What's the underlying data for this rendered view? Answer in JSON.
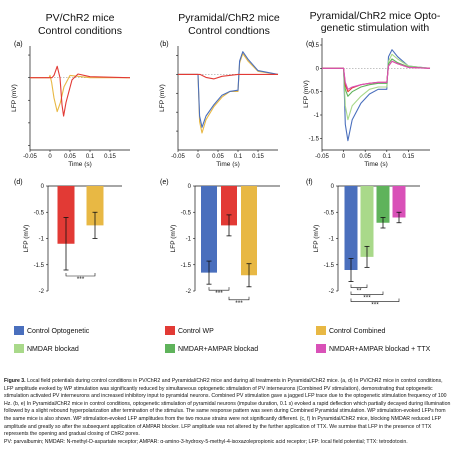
{
  "panel_titles": [
    [
      "PV/ChR2 mice",
      "Control conditions"
    ],
    [
      "Pyramidal/ChR2 mice",
      "Control condtions"
    ],
    [
      "Pyramidal/ChR2 mice Opto-",
      "genetic stimulation with"
    ]
  ],
  "colors": {
    "control_optogenetic": "#4a6fbd",
    "control_wp": "#e23a35",
    "control_combined": "#e8b844",
    "nmdar_blockad": "#a9d98a",
    "nmdar_ampar_blockad": "#5fb35b",
    "nmdar_ampar_ttx": "#d951b8"
  },
  "legend": [
    {
      "label": "Control Optogenetic",
      "color": "#4a6fbd"
    },
    {
      "label": "Control WP",
      "color": "#e23a35"
    },
    {
      "label": "Control Combined",
      "color": "#e8b844"
    },
    {
      "label": "NMDAR blockad",
      "color": "#a9d98a"
    },
    {
      "label": "NMDAR+AMPAR blockad",
      "color": "#5fb35b"
    },
    {
      "label": "NMDAR+AMPAR blockad + TTX",
      "color": "#d951b8"
    }
  ],
  "chart_data": [
    {
      "panel": "(a)",
      "type": "line",
      "xlabel": "Time (s)",
      "ylabel": "LFP (mV)",
      "xlim": [
        -0.05,
        0.2
      ],
      "ylim": [
        -1.6,
        0.7
      ],
      "xticks": [
        "-0.05",
        "0",
        "0.05",
        "0.1",
        "0.15"
      ],
      "series": [
        {
          "color": "#e8b844",
          "x": [
            -0.05,
            -0.002,
            0.0,
            0.004,
            0.01,
            0.018,
            0.026,
            0.035,
            0.05,
            0.07,
            0.1,
            0.2
          ],
          "y": [
            0,
            0,
            0.05,
            -0.1,
            -0.45,
            -0.75,
            -0.55,
            -0.2,
            0.05,
            0.03,
            0.0,
            0.0
          ]
        },
        {
          "color": "#e23a35",
          "x": [
            -0.05,
            0.005,
            0.01,
            0.018,
            0.025,
            0.03,
            0.034,
            0.04,
            0.055,
            0.07,
            0.1,
            0.2
          ],
          "y": [
            0,
            0,
            0.05,
            0.25,
            0.0,
            -0.6,
            -0.85,
            -0.55,
            -0.05,
            0.08,
            0.02,
            0.0
          ]
        }
      ]
    },
    {
      "panel": "(b)",
      "type": "line",
      "xlabel": "Time (s)",
      "ylabel": "LFP (mV)",
      "xlim": [
        -0.05,
        0.2
      ],
      "ylim": [
        -2.0,
        0.75
      ],
      "xticks": [
        "-0.05",
        "0",
        "0.05",
        "0.1",
        "0.15"
      ],
      "series": [
        {
          "color": "#e8b844",
          "x": [
            -0.05,
            0.0,
            0.004,
            0.01,
            0.02,
            0.04,
            0.06,
            0.08,
            0.1,
            0.104,
            0.112,
            0.125,
            0.15,
            0.2
          ],
          "y": [
            0,
            0,
            -1.25,
            -1.55,
            -1.2,
            -0.85,
            -0.6,
            -0.45,
            -0.45,
            0.3,
            0.55,
            0.35,
            0.08,
            0.0
          ]
        },
        {
          "color": "#4a6fbd",
          "x": [
            -0.05,
            0.0,
            0.004,
            0.01,
            0.02,
            0.04,
            0.06,
            0.08,
            0.1,
            0.104,
            0.112,
            0.125,
            0.15,
            0.2
          ],
          "y": [
            0,
            0,
            -1.1,
            -1.4,
            -1.1,
            -0.8,
            -0.55,
            -0.45,
            -0.42,
            0.35,
            0.6,
            0.4,
            0.1,
            0.0
          ]
        },
        {
          "color": "#e23a35",
          "x": [
            -0.05,
            0.005,
            0.02,
            0.04,
            0.06,
            0.1,
            0.2
          ],
          "y": [
            0,
            0,
            -0.08,
            -0.12,
            -0.05,
            0.0,
            0.0
          ]
        }
      ]
    },
    {
      "panel": "(c)",
      "type": "line",
      "xlabel": "Time (s)",
      "ylabel": "LFP (mV)",
      "xlim": [
        -0.05,
        0.2
      ],
      "ylim": [
        -1.75,
        0.65
      ],
      "xticks": [
        "-0.05",
        "0",
        "0.05",
        "0.1",
        "0.15"
      ],
      "yticks": [
        "0.5",
        "0",
        "-0.5",
        "-1",
        "-1.5"
      ],
      "series": [
        {
          "color": "#4a6fbd",
          "x": [
            -0.05,
            0.0,
            0.004,
            0.01,
            0.02,
            0.04,
            0.06,
            0.08,
            0.1,
            0.104,
            0.112,
            0.125,
            0.15,
            0.2
          ],
          "y": [
            0,
            0,
            -1.2,
            -1.55,
            -1.1,
            -0.75,
            -0.55,
            -0.45,
            -0.45,
            0.25,
            0.4,
            0.25,
            0.05,
            0.0
          ]
        },
        {
          "color": "#a9d98a",
          "x": [
            -0.05,
            0.0,
            0.004,
            0.01,
            0.02,
            0.04,
            0.06,
            0.08,
            0.1,
            0.104,
            0.112,
            0.125,
            0.15,
            0.2
          ],
          "y": [
            0,
            0,
            -0.8,
            -1.1,
            -0.8,
            -0.6,
            -0.45,
            -0.4,
            -0.4,
            0.15,
            0.3,
            0.2,
            0.05,
            0.0
          ]
        },
        {
          "color": "#5fb35b",
          "x": [
            -0.05,
            0.0,
            0.004,
            0.01,
            0.02,
            0.04,
            0.06,
            0.08,
            0.1,
            0.104,
            0.112,
            0.125,
            0.15,
            0.2
          ],
          "y": [
            0,
            0,
            -0.45,
            -0.6,
            -0.5,
            -0.4,
            -0.35,
            -0.32,
            -0.32,
            0.1,
            0.2,
            0.12,
            0.03,
            0.0
          ]
        },
        {
          "color": "#e23a35",
          "x": [
            -0.05,
            0.0,
            0.004,
            0.01,
            0.02,
            0.04,
            0.06,
            0.08,
            0.1,
            0.104,
            0.112,
            0.125,
            0.15,
            0.2
          ],
          "y": [
            0,
            0,
            -0.35,
            -0.5,
            -0.42,
            -0.35,
            -0.32,
            -0.3,
            -0.3,
            0.05,
            0.15,
            0.1,
            0.02,
            0.0
          ]
        },
        {
          "color": "#d951b8",
          "x": [
            -0.05,
            0.0,
            0.004,
            0.01,
            0.02,
            0.04,
            0.06,
            0.08,
            0.1,
            0.104,
            0.112,
            0.125,
            0.15,
            0.2
          ],
          "y": [
            0,
            0,
            -0.3,
            -0.45,
            -0.4,
            -0.35,
            -0.32,
            -0.3,
            -0.3,
            0.05,
            0.15,
            0.1,
            0.02,
            0.0
          ]
        }
      ]
    },
    {
      "panel": "(d)",
      "type": "bar",
      "ylabel": "LFP (mV)",
      "ylim": [
        -2,
        0
      ],
      "yticks": [
        "0",
        "-0.5",
        "-1",
        "-1.5",
        "-2"
      ],
      "values": [
        -1.1,
        -0.75
      ],
      "errors": [
        0.5,
        0.25
      ],
      "colors": [
        "#e23a35",
        "#e8b844"
      ],
      "significance": [
        {
          "from": 0,
          "to": 1,
          "label": "***"
        }
      ]
    },
    {
      "panel": "(e)",
      "type": "bar",
      "ylabel": "LFP (mV)",
      "ylim": [
        -2,
        0
      ],
      "yticks": [
        "0",
        "-0.5",
        "-1",
        "-1.5",
        "-2"
      ],
      "values": [
        -1.65,
        -0.75,
        -1.7
      ],
      "errors": [
        0.22,
        0.2,
        0.22
      ],
      "colors": [
        "#4a6fbd",
        "#e23a35",
        "#e8b844"
      ],
      "significance": [
        {
          "from": 0,
          "to": 1,
          "label": "***"
        },
        {
          "from": 1,
          "to": 2,
          "label": "***"
        }
      ]
    },
    {
      "panel": "(f)",
      "type": "bar",
      "ylabel": "LFP (mV)",
      "ylim": [
        -2,
        0
      ],
      "yticks": [
        "0",
        "-0.5",
        "-1",
        "-1.5",
        "-2"
      ],
      "values": [
        -1.6,
        -1.35,
        -0.7,
        -0.6
      ],
      "errors": [
        0.22,
        0.2,
        0.1,
        0.1
      ],
      "colors": [
        "#4a6fbd",
        "#a9d98a",
        "#5fb35b",
        "#d951b8"
      ],
      "significance": [
        {
          "from": 0,
          "to": 1,
          "label": "**"
        },
        {
          "from": 0,
          "to": 2,
          "label": "***"
        },
        {
          "from": 0,
          "to": 3,
          "label": "***"
        }
      ]
    }
  ],
  "caption": {
    "label": "Figure 3.",
    "text": "Local field potentials during control conditions in PV/ChR2 and Pyramidal/ChR2 mice and during all treatments in Pyramidal/ChR2 mice. (a, d) In PV/ChR2 mice in control conditions, LFP amplitude evoked by WP stimulation was significantly reduced by simultaneous optogenetic stimulation of PV interneurons (Combined PV stimulation), demonstrating that optogenetic stimulation activated PV interneurons and increased inhibitory input to pyramidal neurons. Combined PV stimulation gave a jagged LFP trace due to the optogenetic stimulation frequency of 100 Hz. (b, e) In Pyramidal/ChR2 mice in control conditions, optogenetic stimulation of pyramidal neurons (impulse duration, 0.1 s) evoked a rapid deflection which partially decayed during illumination followed by a slight rebound hyperpolarization after termination of the stimulus. The same response pattern was seen during Combined Pyramidal stimulation. WP stimulation-evoked LFPs from the same mice is also shown. WP stimulation-evoked LFP amplitudes from the two mouse strains were not significantly different. (c, f) In Pyramidal/ChR2 mice, blocking NMDAR reduced LFP amplitude and greatly so after the subsequent application of AMPAR blocker. LFP amplitude was not altered by the further application of TTX. We surmise that LFP in the presence of TTX represents the opening and gradual closing of ChR2 pores.",
    "abbreviations": "PV: parvalbumin; NMDAR: N-methyl-D-aspartate receptor; AMPAR: α-amino-3-hydroxy-5-methyl-4-isoxazolepropionic acid receptor; LFP: local field potential; TTX: tetrodotoxin."
  }
}
